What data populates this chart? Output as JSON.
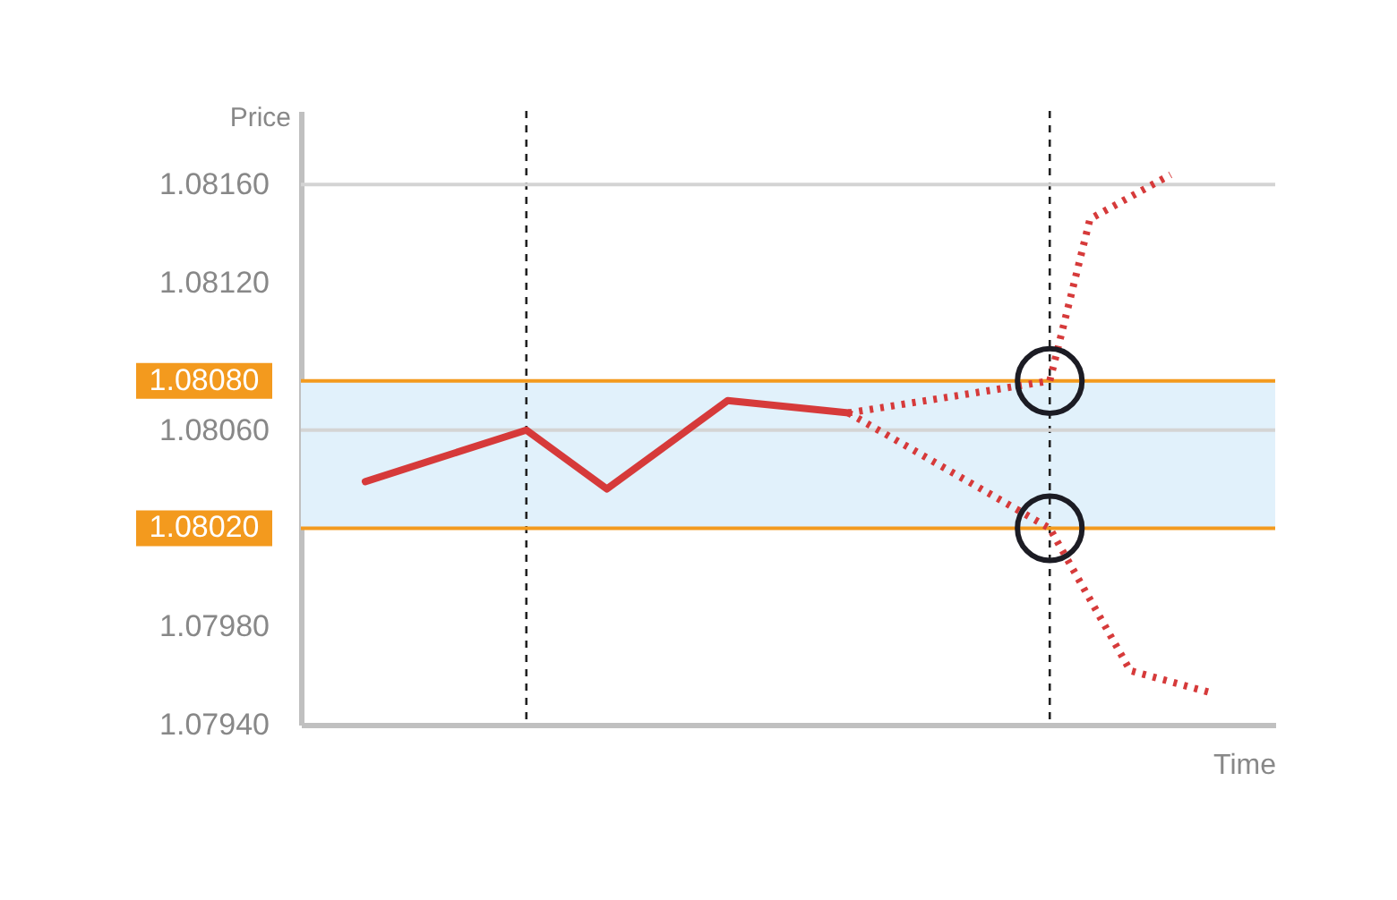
{
  "chart_data": {
    "type": "line",
    "xlabel": "Time",
    "ylabel": "Price",
    "categories": [
      null,
      null,
      null,
      null,
      null,
      null,
      null,
      null,
      null,
      null,
      null,
      null,
      null,
      null,
      null,
      null,
      null,
      null,
      null,
      null,
      null,
      null,
      null,
      null
    ],
    "series": [
      {
        "color": "#d63a3a",
        "line_style": "solid",
        "values": [
          null,
          1.08039,
          null,
          null,
          null,
          1.0806,
          null,
          1.08036,
          null,
          null,
          1.08072,
          null,
          null,
          1.08067,
          null,
          null,
          null,
          null,
          null,
          null,
          null,
          null,
          null,
          null
        ]
      },
      {
        "color": "#d63a3a",
        "line_style": "dotted",
        "values": [
          null,
          null,
          null,
          null,
          null,
          null,
          null,
          null,
          null,
          null,
          null,
          null,
          null,
          1.08067,
          null,
          null,
          null,
          null,
          1.0808,
          1.08146,
          null,
          1.08164,
          null,
          null
        ]
      },
      {
        "color": "#d63a3a",
        "line_style": "dotted",
        "values": [
          null,
          null,
          null,
          null,
          null,
          null,
          null,
          null,
          null,
          null,
          null,
          null,
          null,
          1.08067,
          null,
          null,
          null,
          null,
          1.0802,
          null,
          1.07962,
          null,
          1.07953,
          null
        ]
      },
      {
        "type": "scatter",
        "marker": "circle",
        "color": "#1c1c24",
        "values": [
          null,
          null,
          null,
          null,
          null,
          null,
          null,
          null,
          null,
          null,
          null,
          null,
          null,
          null,
          null,
          null,
          null,
          null,
          1.0808,
          null,
          null,
          null,
          null,
          null
        ]
      },
      {
        "type": "scatter",
        "marker": "circle",
        "color": "#1c1c24",
        "values": [
          null,
          null,
          null,
          null,
          null,
          null,
          null,
          null,
          null,
          null,
          null,
          null,
          null,
          null,
          null,
          null,
          null,
          null,
          1.0802,
          null,
          null,
          null,
          null,
          null
        ]
      }
    ],
    "ylim": [
      1.0794,
      1.0819
    ],
    "yticks": [
      {
        "value": 1.0794,
        "label": "1.07940"
      },
      {
        "value": 1.0798,
        "label": "1.07980"
      },
      {
        "value": 1.0806,
        "label": "1.08060"
      },
      {
        "value": 1.0812,
        "label": "1.08120"
      },
      {
        "value": 1.0816,
        "label": "1.08160"
      }
    ],
    "tick_labels": "y",
    "bands": [
      {
        "axis": "y",
        "from": 1.0802,
        "to": 1.0808,
        "color": "#e1f1fb"
      }
    ],
    "ref_lines": [
      {
        "axis": "y",
        "value": 1.0816,
        "color": "#d4d4d4"
      },
      {
        "axis": "y",
        "value": 1.0806,
        "color": "#d4d4d4"
      },
      {
        "axis": "y",
        "value": 1.0802,
        "label": "1.08020",
        "color": "#f39a1e"
      },
      {
        "axis": "y",
        "value": 1.0808,
        "label": "1.08080",
        "color": "#f39a1e"
      }
    ]
  }
}
